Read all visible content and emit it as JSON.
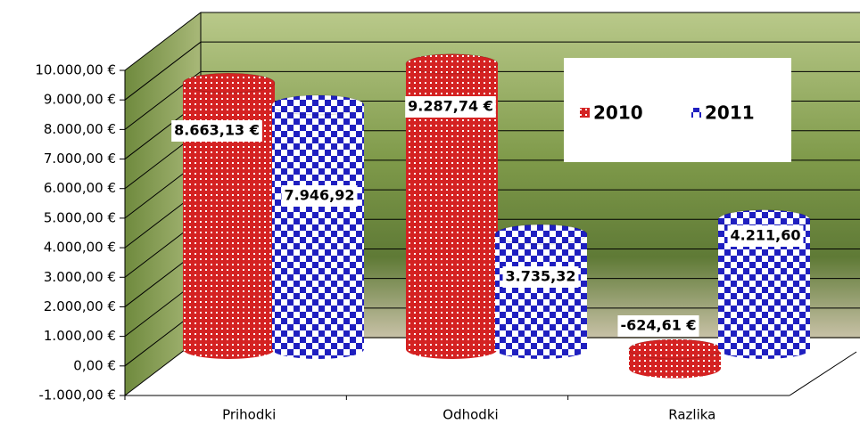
{
  "chart_data": {
    "type": "bar3d-cylinder",
    "categories": [
      "Prihodki",
      "Odhodki",
      "Razlika"
    ],
    "series": [
      {
        "name": "2010",
        "color": "#d42222",
        "values": [
          8663.13,
          9287.74,
          -624.61
        ],
        "value_labels": [
          "8.663,13 €",
          "9.287,74 €",
          "-624,61 €"
        ]
      },
      {
        "name": "2011",
        "color": "#1f1fc0",
        "values": [
          7946.92,
          3735.32,
          4211.6
        ],
        "value_labels": [
          "7.946,92",
          "3.735,32",
          "4.211,60"
        ]
      }
    ],
    "ylim": [
      -1000,
      10000
    ],
    "yticks": [
      {
        "value": -1000,
        "label": "-1.000,00 €"
      },
      {
        "value": 0,
        "label": "0,00 €"
      },
      {
        "value": 1000,
        "label": "1.000,00 €"
      },
      {
        "value": 2000,
        "label": "2.000,00 €"
      },
      {
        "value": 3000,
        "label": "3.000,00 €"
      },
      {
        "value": 4000,
        "label": "4.000,00 €"
      },
      {
        "value": 5000,
        "label": "5.000,00 €"
      },
      {
        "value": 6000,
        "label": "6.000,00 €"
      },
      {
        "value": 7000,
        "label": "7.000,00 €"
      },
      {
        "value": 8000,
        "label": "8.000,00 €"
      },
      {
        "value": 9000,
        "label": "9.000,00 €"
      },
      {
        "value": 10000,
        "label": "10.000,00 €"
      }
    ],
    "grid": true
  }
}
